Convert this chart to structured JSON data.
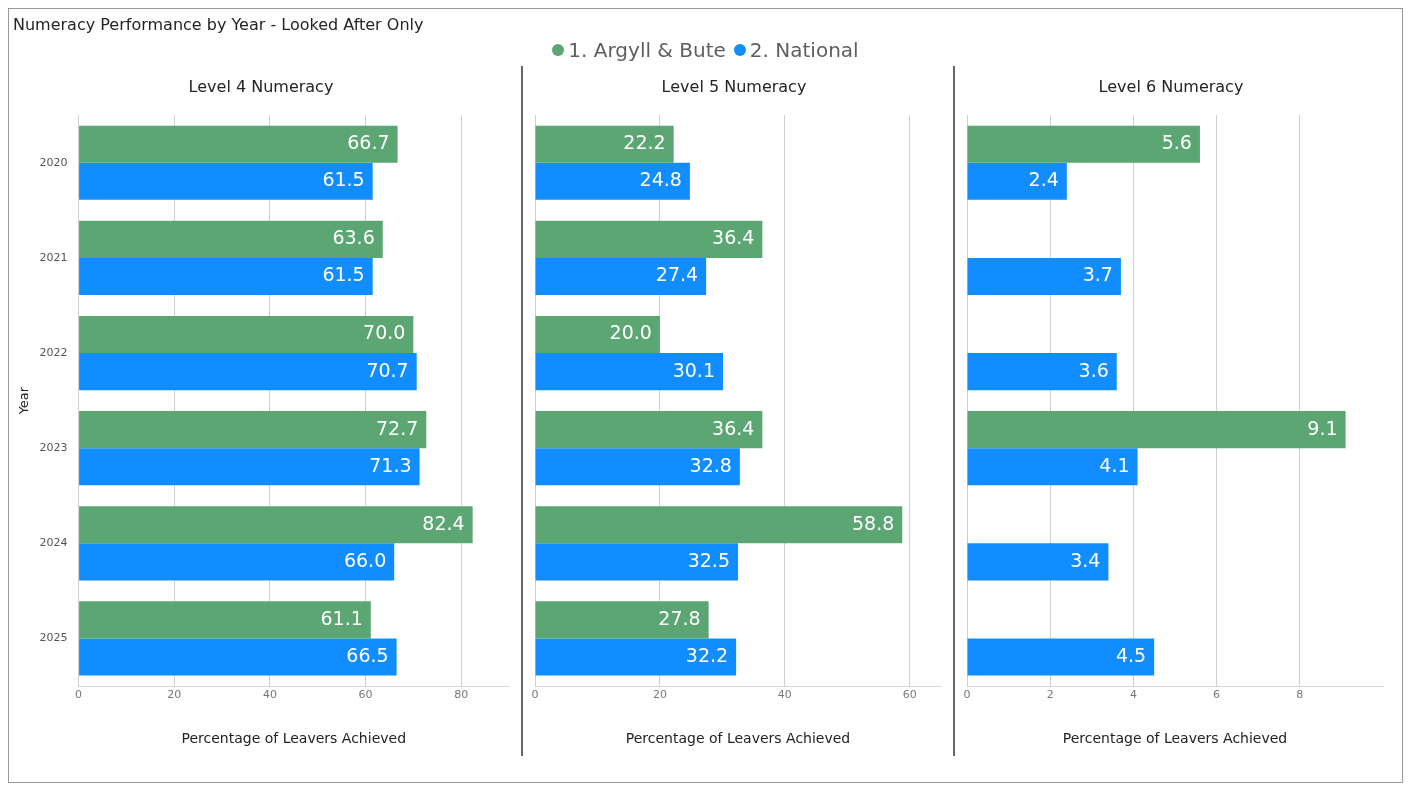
{
  "chart_data": [
    {
      "type": "bar",
      "orientation": "horizontal",
      "annotations": [
        "Numeracy Performance by Year - Looked After Only"
      ],
      "title": "Level 4 Numeracy",
      "xlabel": "Percentage of Leavers Achieved",
      "ylabel": "Year",
      "categories": [
        "2020",
        "2021",
        "2022",
        "2023",
        "2024",
        "2025"
      ],
      "xlim": [
        0,
        90
      ],
      "xticks": [
        0,
        20,
        40,
        60,
        80
      ],
      "grid": "x",
      "legend": "top",
      "series": [
        {
          "name": "1. Argyll & Bute",
          "color": "#5ba672",
          "values": [
            66.7,
            63.6,
            70.0,
            72.7,
            82.4,
            61.1
          ],
          "value_labels": [
            "66.7",
            "63.6",
            "70.0",
            "72.7",
            "82.4",
            "61.1"
          ]
        },
        {
          "name": "2. National",
          "color": "#118dff",
          "values": [
            61.5,
            61.5,
            70.7,
            71.3,
            66.0,
            66.5
          ],
          "value_labels": [
            "61.5",
            "61.5",
            "70.7",
            "71.3",
            "66.0",
            "66.5"
          ]
        }
      ]
    },
    {
      "type": "bar",
      "orientation": "horizontal",
      "title": "Level 5 Numeracy",
      "xlabel": "Percentage of Leavers Achieved",
      "categories": [
        "2020",
        "2021",
        "2022",
        "2023",
        "2024",
        "2025"
      ],
      "xlim": [
        0,
        65
      ],
      "xticks": [
        0,
        20,
        40,
        60
      ],
      "grid": "x",
      "tick_labels": "x",
      "series": [
        {
          "color": "#5ba672",
          "values": [
            22.2,
            36.4,
            20.0,
            36.4,
            58.8,
            27.8
          ],
          "value_labels": [
            "22.2",
            "36.4",
            "20.0",
            "36.4",
            "58.8",
            "27.8"
          ]
        },
        {
          "color": "#118dff",
          "values": [
            24.8,
            27.4,
            30.1,
            32.8,
            32.5,
            32.2
          ],
          "value_labels": [
            "24.8",
            "27.4",
            "30.1",
            "32.8",
            "32.5",
            "32.2"
          ]
        }
      ]
    },
    {
      "type": "bar",
      "orientation": "horizontal",
      "title": "Level 6 Numeracy",
      "xlabel": "Percentage of Leavers Achieved",
      "categories": [
        "2020",
        "2021",
        "2022",
        "2023",
        "2024",
        "2025"
      ],
      "xlim": [
        0,
        10
      ],
      "xticks": [
        0,
        2,
        4,
        6,
        8
      ],
      "grid": "x",
      "tick_labels": "x",
      "series": [
        {
          "color": "#5ba672",
          "values": [
            5.6,
            null,
            null,
            9.1,
            null,
            null
          ],
          "value_labels": [
            "5.6",
            null,
            null,
            "9.1",
            null,
            null
          ]
        },
        {
          "color": "#118dff",
          "values": [
            2.4,
            3.7,
            3.6,
            4.1,
            3.4,
            4.5
          ],
          "value_labels": [
            "2.4",
            "3.7",
            "3.6",
            "4.1",
            "3.4",
            "4.5"
          ]
        }
      ]
    }
  ]
}
